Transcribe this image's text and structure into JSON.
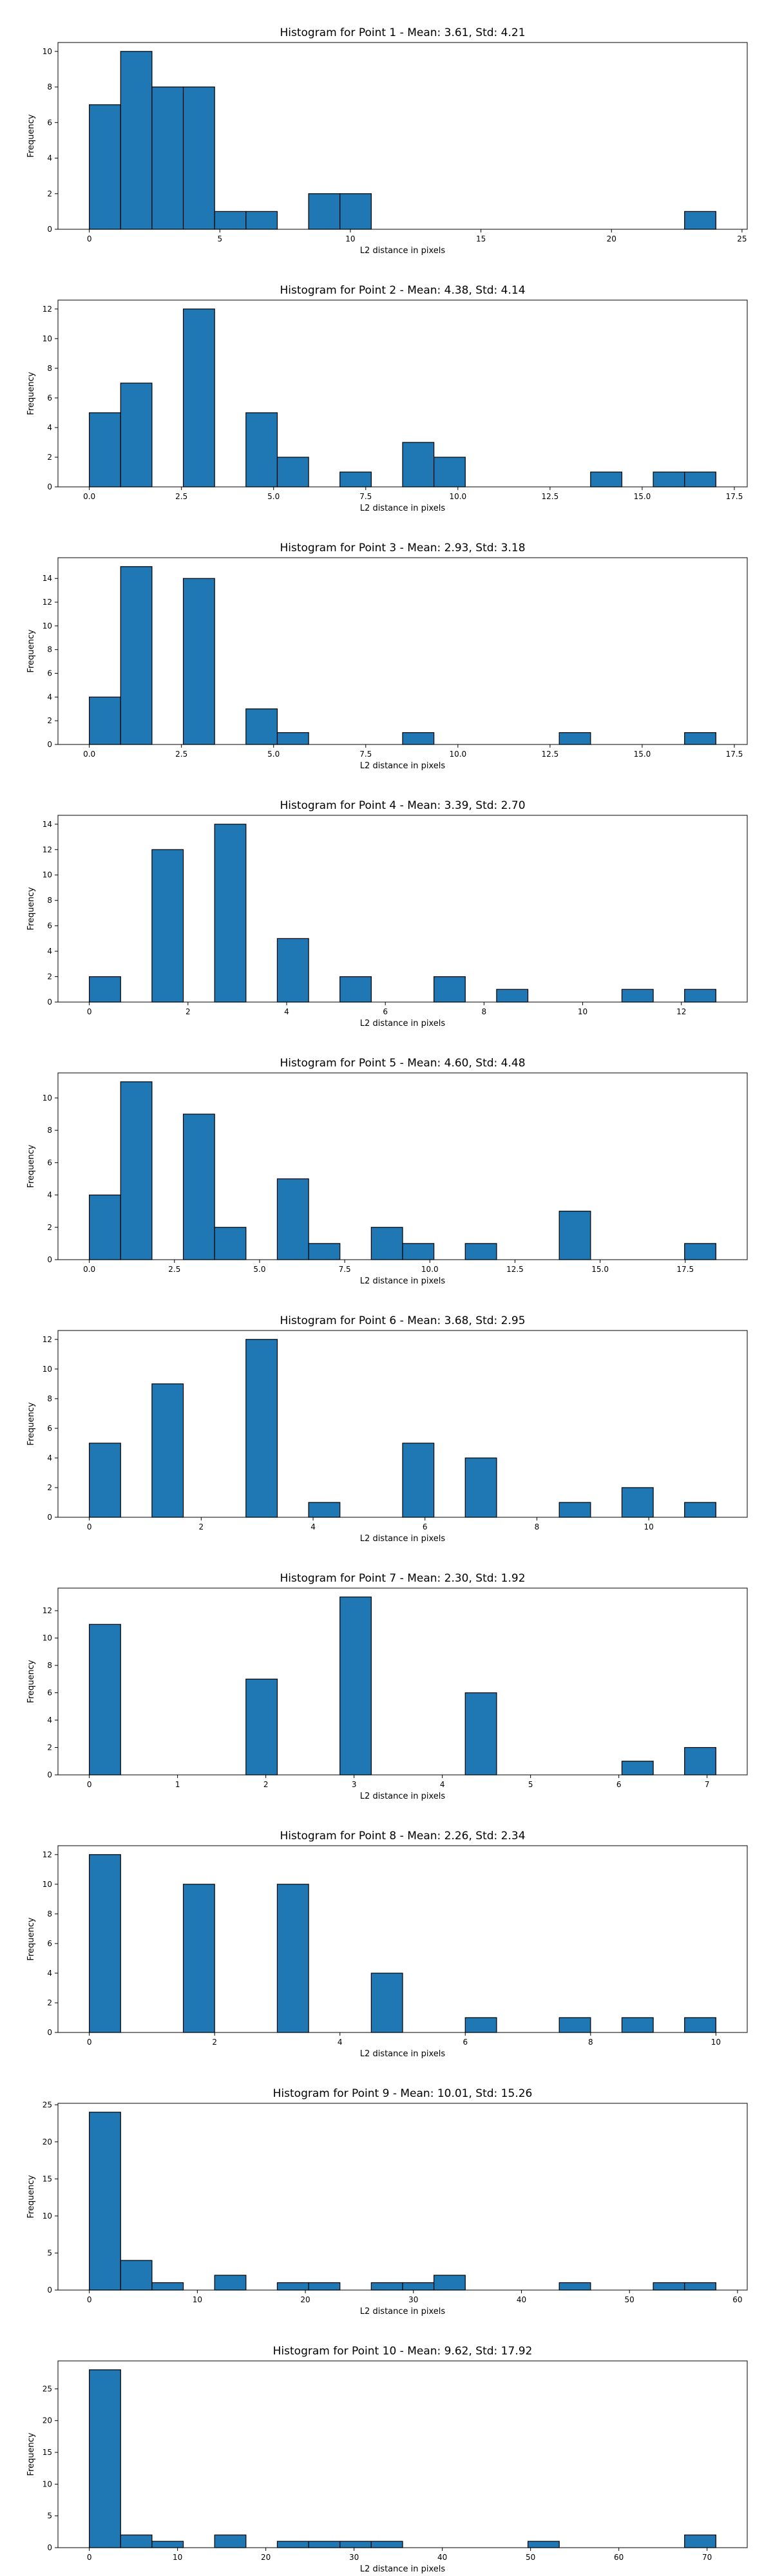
{
  "chart_data": [
    {
      "type": "bar",
      "title": "Histogram for Point 1 - Mean: 3.61, Std: 4.21",
      "xlabel": "L2 distance in pixels",
      "ylabel": "Frequency",
      "bin_range": [
        0,
        24
      ],
      "bin_count": 20,
      "values": [
        7,
        10,
        8,
        8,
        1,
        1,
        0,
        2,
        2,
        0,
        0,
        0,
        0,
        0,
        0,
        0,
        0,
        0,
        0,
        1
      ],
      "xlim": [
        -1.2,
        25.2
      ],
      "ylim": [
        0,
        10.5
      ],
      "xticks": [
        0,
        5,
        10,
        15,
        20,
        25
      ],
      "xtick_labels": [
        "0",
        "5",
        "10",
        "15",
        "20",
        "25"
      ],
      "yticks": [
        0,
        2,
        4,
        6,
        8,
        10
      ],
      "ytick_labels": [
        "0",
        "2",
        "4",
        "6",
        "8",
        "10"
      ]
    },
    {
      "type": "bar",
      "title": "Histogram for Point 2 - Mean: 4.38, Std: 4.14",
      "xlabel": "L2 distance in pixels",
      "ylabel": "Frequency",
      "bin_range": [
        0,
        17
      ],
      "bin_count": 20,
      "values": [
        5,
        7,
        0,
        12,
        0,
        5,
        2,
        0,
        1,
        0,
        3,
        2,
        0,
        0,
        0,
        0,
        1,
        0,
        1,
        1
      ],
      "xlim": [
        -0.85,
        17.85
      ],
      "ylim": [
        0,
        12.6
      ],
      "xticks": [
        0,
        2.5,
        5,
        7.5,
        10,
        12.5,
        15,
        17.5
      ],
      "xtick_labels": [
        "0.0",
        "2.5",
        "5.0",
        "7.5",
        "10.0",
        "12.5",
        "15.0",
        "17.5"
      ],
      "yticks": [
        0,
        2,
        4,
        6,
        8,
        10,
        12
      ],
      "ytick_labels": [
        "0",
        "2",
        "4",
        "6",
        "8",
        "10",
        "12"
      ]
    },
    {
      "type": "bar",
      "title": "Histogram for Point 3 - Mean: 2.93, Std: 3.18",
      "xlabel": "L2 distance in pixels",
      "ylabel": "Frequency",
      "bin_range": [
        0,
        17
      ],
      "bin_count": 20,
      "values": [
        4,
        15,
        0,
        14,
        0,
        3,
        1,
        0,
        0,
        0,
        1,
        0,
        0,
        0,
        0,
        1,
        0,
        0,
        0,
        1
      ],
      "xlim": [
        -0.85,
        17.85
      ],
      "ylim": [
        0,
        15.75
      ],
      "xticks": [
        0,
        2.5,
        5,
        7.5,
        10,
        12.5,
        15,
        17.5
      ],
      "xtick_labels": [
        "0.0",
        "2.5",
        "5.0",
        "7.5",
        "10.0",
        "12.5",
        "15.0",
        "17.5"
      ],
      "yticks": [
        0,
        2,
        4,
        6,
        8,
        10,
        12,
        14
      ],
      "ytick_labels": [
        "0",
        "2",
        "4",
        "6",
        "8",
        "10",
        "12",
        "14"
      ]
    },
    {
      "type": "bar",
      "title": "Histogram for Point 4 - Mean: 3.39, Std: 2.70",
      "xlabel": "L2 distance in pixels",
      "ylabel": "Frequency",
      "bin_range": [
        0,
        12.7
      ],
      "bin_count": 20,
      "values": [
        2,
        0,
        12,
        0,
        14,
        0,
        5,
        0,
        2,
        0,
        0,
        2,
        0,
        1,
        0,
        0,
        0,
        1,
        0,
        1
      ],
      "xlim": [
        -0.635,
        13.335
      ],
      "ylim": [
        0,
        14.7
      ],
      "xticks": [
        0,
        2,
        4,
        6,
        8,
        10,
        12
      ],
      "xtick_labels": [
        "0",
        "2",
        "4",
        "6",
        "8",
        "10",
        "12"
      ],
      "yticks": [
        0,
        2,
        4,
        6,
        8,
        10,
        12,
        14
      ],
      "ytick_labels": [
        "0",
        "2",
        "4",
        "6",
        "8",
        "10",
        "12",
        "14"
      ]
    },
    {
      "type": "bar",
      "title": "Histogram for Point 5 - Mean: 4.60, Std: 4.48",
      "xlabel": "L2 distance in pixels",
      "ylabel": "Frequency",
      "bin_range": [
        0,
        18.4
      ],
      "bin_count": 20,
      "values": [
        4,
        11,
        0,
        9,
        2,
        0,
        5,
        1,
        0,
        2,
        1,
        0,
        1,
        0,
        0,
        3,
        0,
        0,
        0,
        1
      ],
      "xlim": [
        -0.92,
        19.32
      ],
      "ylim": [
        0,
        11.55
      ],
      "xticks": [
        0,
        2.5,
        5,
        7.5,
        10,
        12.5,
        15,
        17.5
      ],
      "xtick_labels": [
        "0.0",
        "2.5",
        "5.0",
        "7.5",
        "10.0",
        "12.5",
        "15.0",
        "17.5"
      ],
      "yticks": [
        0,
        2,
        4,
        6,
        8,
        10
      ],
      "ytick_labels": [
        "0",
        "2",
        "4",
        "6",
        "8",
        "10"
      ]
    },
    {
      "type": "bar",
      "title": "Histogram for Point 6 - Mean: 3.68, Std: 2.95",
      "xlabel": "L2 distance in pixels",
      "ylabel": "Frequency",
      "bin_range": [
        0,
        11.2
      ],
      "bin_count": 20,
      "values": [
        5,
        0,
        9,
        0,
        0,
        12,
        0,
        1,
        0,
        0,
        5,
        0,
        4,
        0,
        0,
        1,
        0,
        2,
        0,
        1
      ],
      "xlim": [
        -0.56,
        11.76
      ],
      "ylim": [
        0,
        12.6
      ],
      "xticks": [
        0,
        2,
        4,
        6,
        8,
        10
      ],
      "xtick_labels": [
        "0",
        "2",
        "4",
        "6",
        "8",
        "10"
      ],
      "yticks": [
        0,
        2,
        4,
        6,
        8,
        10,
        12
      ],
      "ytick_labels": [
        "0",
        "2",
        "4",
        "6",
        "8",
        "10",
        "12"
      ]
    },
    {
      "type": "bar",
      "title": "Histogram for Point 7 - Mean: 2.30, Std: 1.92",
      "xlabel": "L2 distance in pixels",
      "ylabel": "Frequency",
      "bin_range": [
        0,
        7.1
      ],
      "bin_count": 20,
      "values": [
        11,
        0,
        0,
        0,
        0,
        7,
        0,
        0,
        13,
        0,
        0,
        0,
        6,
        0,
        0,
        0,
        0,
        1,
        0,
        2
      ],
      "xlim": [
        -0.355,
        7.455
      ],
      "ylim": [
        0,
        13.65
      ],
      "xticks": [
        0,
        1,
        2,
        3,
        4,
        5,
        6,
        7
      ],
      "xtick_labels": [
        "0",
        "1",
        "2",
        "3",
        "4",
        "5",
        "6",
        "7"
      ],
      "yticks": [
        0,
        2,
        4,
        6,
        8,
        10,
        12
      ],
      "ytick_labels": [
        "0",
        "2",
        "4",
        "6",
        "8",
        "10",
        "12"
      ]
    },
    {
      "type": "bar",
      "title": "Histogram for Point 8 - Mean: 2.26, Std: 2.34",
      "xlabel": "L2 distance in pixels",
      "ylabel": "Frequency",
      "bin_range": [
        0,
        10
      ],
      "bin_count": 20,
      "values": [
        12,
        0,
        0,
        10,
        0,
        0,
        10,
        0,
        0,
        4,
        0,
        0,
        1,
        0,
        0,
        1,
        0,
        1,
        0,
        1
      ],
      "xlim": [
        -0.5,
        10.5
      ],
      "ylim": [
        0,
        12.6
      ],
      "xticks": [
        0,
        2,
        4,
        6,
        8,
        10
      ],
      "xtick_labels": [
        "0",
        "2",
        "4",
        "6",
        "8",
        "10"
      ],
      "yticks": [
        0,
        2,
        4,
        6,
        8,
        10,
        12
      ],
      "ytick_labels": [
        "0",
        "2",
        "4",
        "6",
        "8",
        "10",
        "12"
      ]
    },
    {
      "type": "bar",
      "title": "Histogram for Point 9 - Mean: 10.01, Std: 15.26",
      "xlabel": "L2 distance in pixels",
      "ylabel": "Frequency",
      "bin_range": [
        0,
        58
      ],
      "bin_count": 20,
      "values": [
        24,
        4,
        1,
        0,
        2,
        0,
        1,
        1,
        0,
        1,
        1,
        2,
        0,
        0,
        0,
        1,
        0,
        0,
        1,
        1
      ],
      "xlim": [
        -2.9,
        60.9
      ],
      "ylim": [
        0,
        25.2
      ],
      "xticks": [
        0,
        10,
        20,
        30,
        40,
        50,
        60
      ],
      "xtick_labels": [
        "0",
        "10",
        "20",
        "30",
        "40",
        "50",
        "60"
      ],
      "yticks": [
        0,
        5,
        10,
        15,
        20,
        25
      ],
      "ytick_labels": [
        "0",
        "5",
        "10",
        "15",
        "20",
        "25"
      ]
    },
    {
      "type": "bar",
      "title": "Histogram for Point 10 - Mean: 9.62, Std: 17.92",
      "xlabel": "L2 distance in pixels",
      "ylabel": "Frequency",
      "bin_range": [
        0,
        71
      ],
      "bin_count": 20,
      "values": [
        28,
        2,
        1,
        0,
        2,
        0,
        1,
        1,
        1,
        1,
        0,
        0,
        0,
        0,
        1,
        0,
        0,
        0,
        0,
        2
      ],
      "xlim": [
        -3.55,
        74.55
      ],
      "ylim": [
        0,
        29.4
      ],
      "xticks": [
        0,
        10,
        20,
        30,
        40,
        50,
        60,
        70
      ],
      "xtick_labels": [
        "0",
        "10",
        "20",
        "30",
        "40",
        "50",
        "60",
        "70"
      ],
      "yticks": [
        0,
        5,
        10,
        15,
        20,
        25
      ],
      "ytick_labels": [
        "0",
        "5",
        "10",
        "15",
        "20",
        "25"
      ]
    }
  ]
}
